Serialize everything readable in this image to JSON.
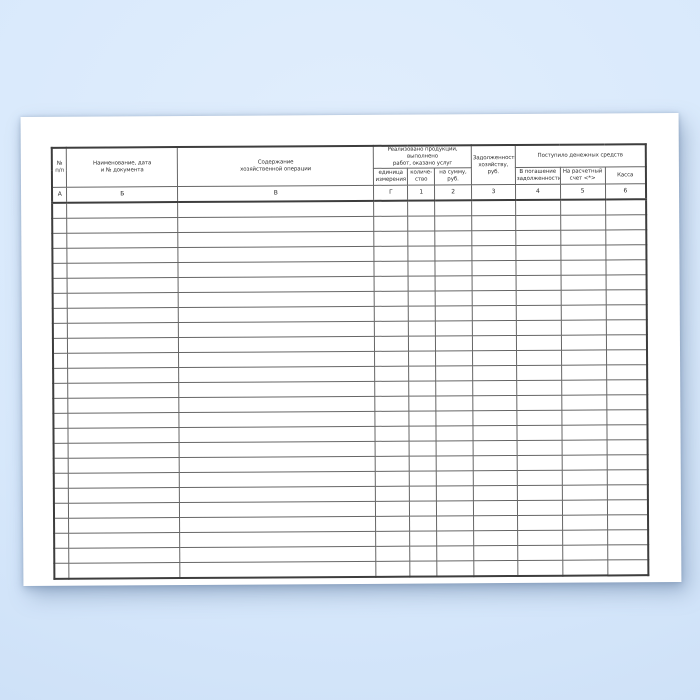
{
  "background": {
    "top": "#e1eefd",
    "mid": "#d7e8fb",
    "bottom": "#c9ddf6"
  },
  "paper": {
    "color": "#ffffff"
  },
  "table": {
    "line_color": "#666666",
    "outer_line_color": "#3d3d3d",
    "text_color": "#2e2e2e",
    "header": {
      "npp": "№\nп/п",
      "doc": "Наименование, дата\nи № документа",
      "operation": "Содержание\nхозяйственной операции",
      "sold_group": "Реализовано продукции, выполнено\nработ, оказано услуг",
      "unit": "единица\nизмерения",
      "qty": "количе-\nство",
      "amount": "на сумму, руб.",
      "debt": "Задолженность\nхозяйству, руб.",
      "received_group": "Поступило денежных средств",
      "repayment": "В погашение\nзадолженности",
      "account": "На расчетный\nсчет <*>",
      "cash": "Касса"
    },
    "codes": [
      "А",
      "Б",
      "В",
      "Г",
      "1",
      "2",
      "3",
      "4",
      "5",
      "6"
    ],
    "body_row_count": 25
  }
}
